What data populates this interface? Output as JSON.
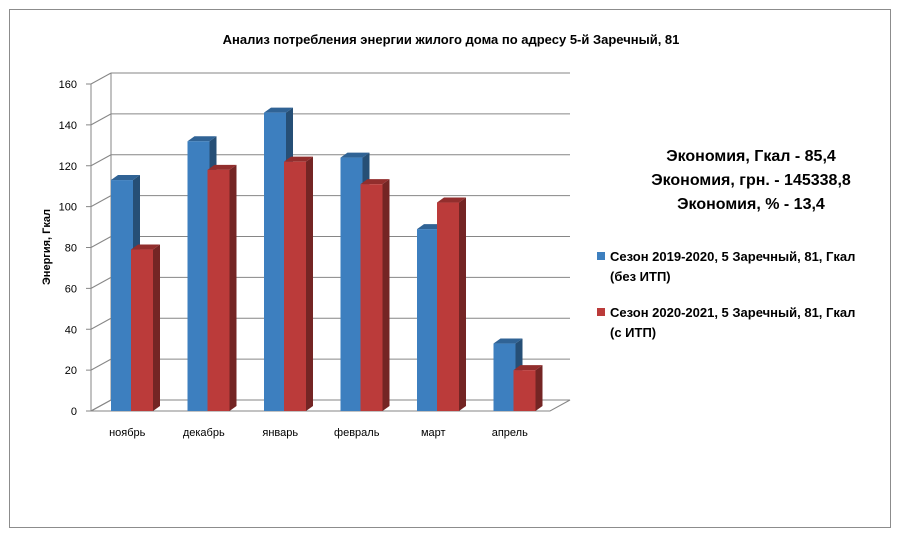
{
  "chart_data": {
    "type": "bar",
    "title": "Анализ потребления энергии жилого дома по адресу 5-й Заречный, 81",
    "xlabel": "",
    "ylabel": "Энергия, Гкал",
    "ylim": [
      0,
      160
    ],
    "yticks": [
      "0",
      "20",
      "40",
      "60",
      "80",
      "100",
      "120",
      "140",
      "160"
    ],
    "grid": true,
    "legend_position": "right",
    "categories": [
      "ноябрь",
      "декабрь",
      "январь",
      "февраль",
      "март",
      "апрель"
    ],
    "series": [
      {
        "name": "Сезон 2019-2020, 5 Заречный, 81, Гкал\n(без ИТП)",
        "color": "#3d7fbf",
        "values": [
          113,
          132,
          146,
          124,
          89,
          33
        ]
      },
      {
        "name": "Сезон 2020-2021, 5 Заречный, 81, Гкал\n(с ИТП)",
        "color": "#bb3b3a",
        "values": [
          79,
          118,
          122,
          111,
          102,
          20
        ]
      }
    ]
  },
  "summary": {
    "line1": "Экономия, Гкал -  85,4",
    "line2": "Экономия, грн. - 145338,8",
    "line3": "Экономия, %  - 13,4"
  }
}
